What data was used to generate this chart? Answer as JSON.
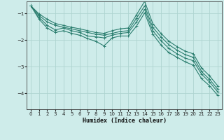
{
  "xlabel": "Humidex (Indice chaleur)",
  "bg_color": "#ceecea",
  "grid_color": "#aed4d0",
  "line_color": "#2a7d6e",
  "xlim": [
    -0.5,
    23.5
  ],
  "ylim": [
    -4.6,
    -0.55
  ],
  "yticks": [
    -4,
    -3,
    -2,
    -1
  ],
  "xticks": [
    0,
    1,
    2,
    3,
    4,
    5,
    6,
    7,
    8,
    9,
    10,
    11,
    12,
    13,
    14,
    15,
    16,
    17,
    18,
    19,
    20,
    21,
    22,
    23
  ],
  "curves": [
    {
      "x": [
        0,
        1,
        2,
        3,
        4,
        5,
        6,
        7,
        8,
        9,
        10,
        11,
        12,
        13,
        14,
        15,
        16,
        17,
        18,
        19,
        20,
        21,
        22,
        23
      ],
      "y": [
        -0.72,
        -1.02,
        -1.22,
        -1.38,
        -1.45,
        -1.52,
        -1.58,
        -1.65,
        -1.72,
        -1.75,
        -1.65,
        -1.58,
        -1.55,
        -1.05,
        -0.55,
        -1.38,
        -1.75,
        -2.05,
        -2.25,
        -2.42,
        -2.52,
        -3.05,
        -3.35,
        -3.72
      ]
    },
    {
      "x": [
        0,
        1,
        2,
        3,
        4,
        5,
        6,
        7,
        8,
        9,
        10,
        11,
        12,
        13,
        14,
        15,
        16,
        17,
        18,
        19,
        20,
        21,
        22,
        23
      ],
      "y": [
        -0.72,
        -1.08,
        -1.32,
        -1.45,
        -1.52,
        -1.58,
        -1.65,
        -1.72,
        -1.78,
        -1.82,
        -1.75,
        -1.68,
        -1.65,
        -1.18,
        -0.72,
        -1.52,
        -1.88,
        -2.18,
        -2.38,
        -2.55,
        -2.65,
        -3.18,
        -3.48,
        -3.85
      ]
    },
    {
      "x": [
        0,
        1,
        2,
        3,
        4,
        5,
        6,
        7,
        8,
        9,
        10,
        11,
        12,
        13,
        14,
        15,
        16,
        17,
        18,
        19,
        20,
        21,
        22,
        23
      ],
      "y": [
        -0.72,
        -1.15,
        -1.45,
        -1.62,
        -1.55,
        -1.65,
        -1.72,
        -1.85,
        -1.88,
        -1.92,
        -1.82,
        -1.75,
        -1.72,
        -1.32,
        -0.85,
        -1.65,
        -2.02,
        -2.32,
        -2.52,
        -2.68,
        -2.78,
        -3.28,
        -3.58,
        -3.95
      ]
    },
    {
      "x": [
        0,
        1,
        2,
        3,
        4,
        5,
        6,
        7,
        8,
        9,
        10,
        11,
        12,
        13,
        14,
        15,
        16,
        17,
        18,
        19,
        20,
        21,
        22,
        23
      ],
      "y": [
        -0.72,
        -1.22,
        -1.55,
        -1.72,
        -1.65,
        -1.75,
        -1.82,
        -1.95,
        -2.05,
        -2.22,
        -1.92,
        -1.85,
        -1.85,
        -1.48,
        -0.98,
        -1.78,
        -2.18,
        -2.48,
        -2.65,
        -2.82,
        -2.95,
        -3.45,
        -3.72,
        -4.08
      ]
    }
  ]
}
